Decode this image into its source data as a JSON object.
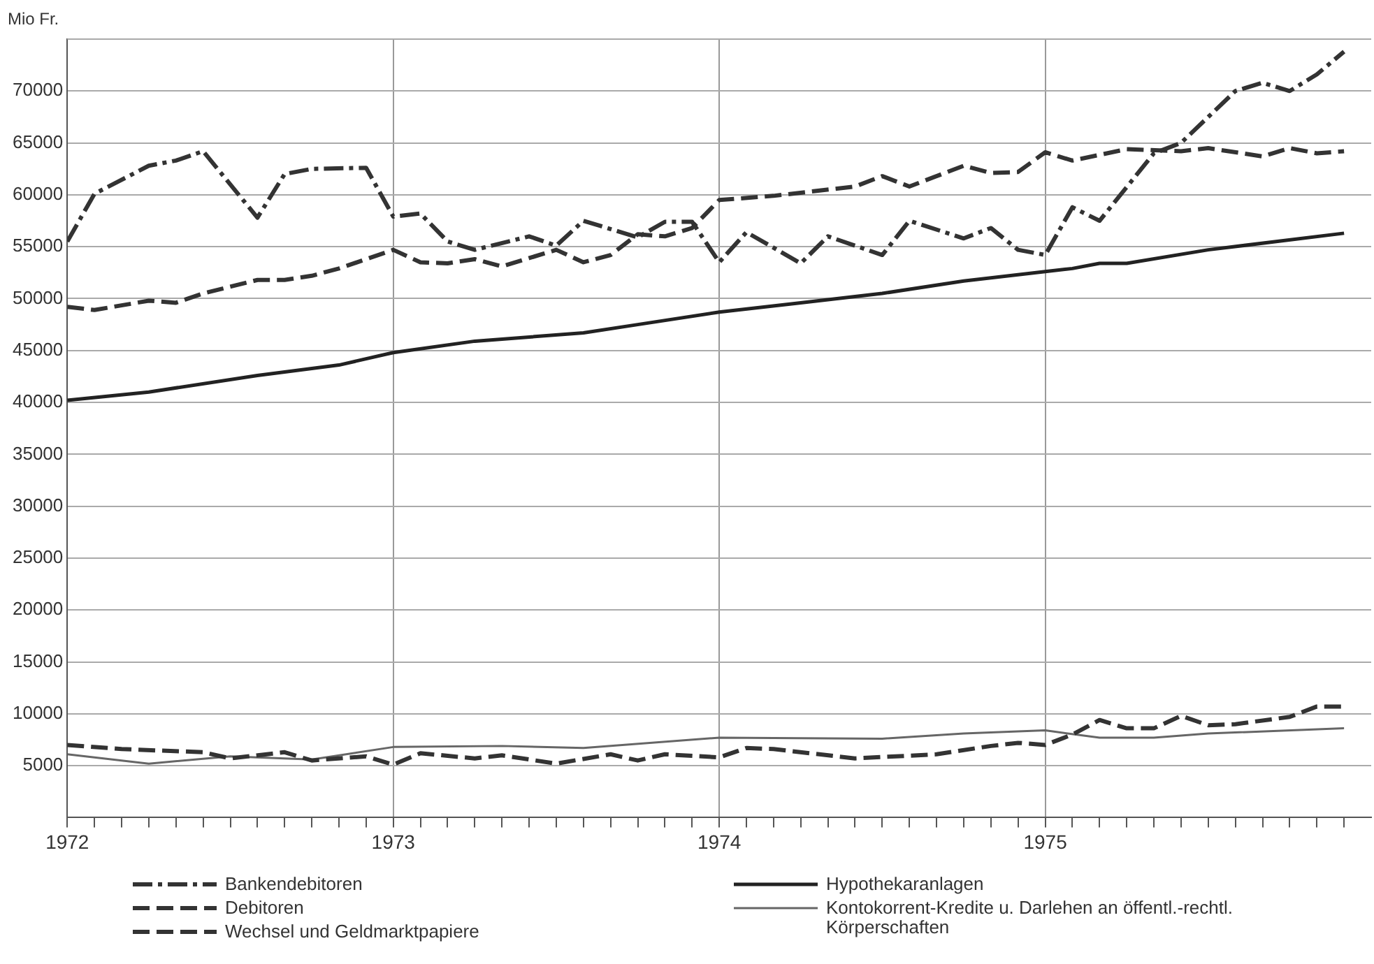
{
  "chart_data": {
    "type": "line",
    "ylabel": "Mio Fr.",
    "ylim": [
      0,
      75000
    ],
    "yticks": [
      5000,
      10000,
      15000,
      20000,
      25000,
      30000,
      35000,
      40000,
      45000,
      50000,
      55000,
      60000,
      65000,
      70000
    ],
    "xlim": [
      "1972-01",
      "1976-01"
    ],
    "xticks": [
      {
        "value": "1972-01",
        "label": "1972"
      },
      {
        "value": "1972-02",
        "label": null
      },
      {
        "value": "1972-03",
        "label": null
      },
      {
        "value": "1972-04",
        "label": null
      },
      {
        "value": "1972-05",
        "label": null
      },
      {
        "value": "1972-06",
        "label": null
      },
      {
        "value": "1972-07",
        "label": null
      },
      {
        "value": "1972-08",
        "label": null
      },
      {
        "value": "1972-09",
        "label": null
      },
      {
        "value": "1972-10",
        "label": null
      },
      {
        "value": "1972-11",
        "label": null
      },
      {
        "value": "1972-12",
        "label": null
      },
      {
        "value": "1973-01",
        "label": "1973"
      },
      {
        "value": "1973-02",
        "label": null
      },
      {
        "value": "1973-03",
        "label": null
      },
      {
        "value": "1973-04",
        "label": null
      },
      {
        "value": "1973-05",
        "label": null
      },
      {
        "value": "1973-06",
        "label": null
      },
      {
        "value": "1973-07",
        "label": null
      },
      {
        "value": "1973-08",
        "label": null
      },
      {
        "value": "1973-09",
        "label": null
      },
      {
        "value": "1973-10",
        "label": null
      },
      {
        "value": "1973-11",
        "label": null
      },
      {
        "value": "1973-12",
        "label": null
      },
      {
        "value": "1974-01",
        "label": "1974"
      },
      {
        "value": "1974-02",
        "label": null
      },
      {
        "value": "1974-03",
        "label": null
      },
      {
        "value": "1974-04",
        "label": null
      },
      {
        "value": "1974-05",
        "label": null
      },
      {
        "value": "1974-06",
        "label": null
      },
      {
        "value": "1974-07",
        "label": null
      },
      {
        "value": "1974-08",
        "label": null
      },
      {
        "value": "1974-09",
        "label": null
      },
      {
        "value": "1974-10",
        "label": null
      },
      {
        "value": "1974-11",
        "label": null
      },
      {
        "value": "1974-12",
        "label": null
      },
      {
        "value": "1975-01",
        "label": "1975"
      },
      {
        "value": "1975-02",
        "label": null
      },
      {
        "value": "1975-03",
        "label": null
      },
      {
        "value": "1975-04",
        "label": null
      },
      {
        "value": "1975-05",
        "label": null
      },
      {
        "value": "1975-06",
        "label": null
      },
      {
        "value": "1975-07",
        "label": null
      },
      {
        "value": "1975-08",
        "label": null
      },
      {
        "value": "1975-09",
        "label": null
      },
      {
        "value": "1975-10",
        "label": null
      },
      {
        "value": "1975-11",
        "label": null
      },
      {
        "value": "1975-12",
        "label": null
      }
    ],
    "grid": true,
    "legend": "bottom",
    "marker": "none",
    "series": [
      {
        "name": "Bankendebitoren",
        "color": "#333333",
        "line_style": "dashdot",
        "x": [
          "1972-01",
          "1972-02",
          "1972-04",
          "1972-05",
          "1972-06",
          "1972-08",
          "1972-09",
          "1972-10",
          "1972-12",
          "1973-01",
          "1973-02",
          "1973-03",
          "1973-04",
          "1973-06",
          "1973-07",
          "1973-08",
          "1973-10",
          "1973-11",
          "1973-12",
          "1974-01",
          "1974-02",
          "1974-04",
          "1974-05",
          "1974-07",
          "1974-08",
          "1974-10",
          "1974-11",
          "1974-12",
          "1975-01",
          "1975-02",
          "1975-03",
          "1975-05",
          "1975-06",
          "1975-08",
          "1975-09",
          "1975-10",
          "1975-11",
          "1975-12"
        ],
        "values": [
          55500,
          60100,
          62800,
          63300,
          64200,
          57800,
          62000,
          62500,
          62600,
          57900,
          58200,
          55500,
          54700,
          56000,
          55100,
          57500,
          55900,
          57400,
          57400,
          53500,
          56400,
          53400,
          56000,
          54200,
          57500,
          55800,
          56800,
          54700,
          54200,
          58800,
          57500,
          64000,
          65000,
          70000,
          70800,
          70000,
          71600,
          73800
        ]
      },
      {
        "name": "Debitoren",
        "color": "#333333",
        "line_style": "dashed",
        "x": [
          "1972-01",
          "1972-02",
          "1972-04",
          "1972-05",
          "1972-06",
          "1972-08",
          "1972-09",
          "1972-10",
          "1972-11",
          "1973-01",
          "1973-02",
          "1973-03",
          "1973-04",
          "1973-05",
          "1973-07",
          "1973-08",
          "1973-09",
          "1973-10",
          "1973-11",
          "1973-12",
          "1974-01",
          "1974-03",
          "1974-06",
          "1974-07",
          "1974-08",
          "1974-10",
          "1974-11",
          "1974-12",
          "1975-01",
          "1975-02",
          "1975-04",
          "1975-06",
          "1975-07",
          "1975-09",
          "1975-10",
          "1975-11",
          "1975-12"
        ],
        "values": [
          49200,
          48900,
          49800,
          49600,
          50500,
          51800,
          51800,
          52200,
          52900,
          54700,
          53500,
          53400,
          53800,
          53100,
          54700,
          53500,
          54200,
          56200,
          56000,
          56800,
          59500,
          59900,
          60800,
          61800,
          60800,
          62800,
          62100,
          62200,
          64100,
          63300,
          64400,
          64200,
          64500,
          63700,
          64500,
          64000,
          64200
        ]
      },
      {
        "name": "Wechsel und Geldmarktpapiere",
        "color": "#333333",
        "line_style": "dashed",
        "x": [
          "1972-01",
          "1972-03",
          "1972-06",
          "1972-07",
          "1972-09",
          "1972-10",
          "1972-12",
          "1973-01",
          "1973-02",
          "1973-04",
          "1973-05",
          "1973-07",
          "1973-09",
          "1973-10",
          "1973-11",
          "1974-01",
          "1974-02",
          "1974-03",
          "1974-06",
          "1974-09",
          "1974-11",
          "1974-12",
          "1975-01",
          "1975-02",
          "1975-03",
          "1975-04",
          "1975-05",
          "1975-06",
          "1975-07",
          "1975-08",
          "1975-10",
          "1975-11",
          "1975-12"
        ],
        "values": [
          7000,
          6600,
          6300,
          5700,
          6300,
          5500,
          5900,
          5100,
          6200,
          5700,
          6000,
          5200,
          6100,
          5500,
          6100,
          5800,
          6700,
          6600,
          5700,
          6100,
          6900,
          7200,
          7000,
          8000,
          9400,
          8600,
          8600,
          9800,
          8900,
          9000,
          9700,
          10700,
          10700
        ]
      },
      {
        "name": "Hypothekaranlagen",
        "color": "#222222",
        "line_style": "solid",
        "x": [
          "1972-01",
          "1972-04",
          "1972-08",
          "1972-11",
          "1973-01",
          "1973-04",
          "1973-08",
          "1973-10",
          "1974-01",
          "1974-04",
          "1974-07",
          "1974-10",
          "1975-01",
          "1975-02",
          "1975-03",
          "1975-04",
          "1975-07",
          "1975-12"
        ],
        "values": [
          40200,
          41000,
          42600,
          43600,
          44800,
          45900,
          46700,
          47500,
          48700,
          49600,
          50500,
          51700,
          52600,
          52900,
          53400,
          53400,
          54700,
          56300
        ]
      },
      {
        "name": "Kontokorrent-Kredite u. Darlehen an öffentl.-rechtl. Körperschaften",
        "color": "#666666",
        "line_style": "solid",
        "x": [
          "1972-01",
          "1972-04",
          "1972-07",
          "1972-10",
          "1973-01",
          "1973-05",
          "1973-08",
          "1974-01",
          "1974-07",
          "1974-10",
          "1975-01",
          "1975-03",
          "1975-05",
          "1975-07",
          "1975-12"
        ],
        "values": [
          6100,
          5200,
          5900,
          5600,
          6800,
          6900,
          6700,
          7700,
          7600,
          8100,
          8400,
          7700,
          7700,
          8100,
          8600
        ]
      }
    ]
  }
}
